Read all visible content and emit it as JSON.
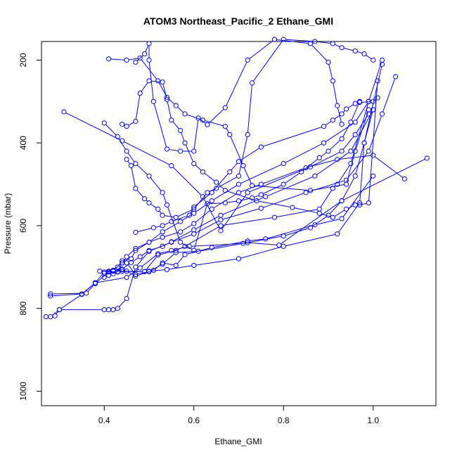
{
  "chart_data": {
    "type": "line",
    "title": "ATOM3 Northeast_Pacific_2 Ethane_GMI",
    "xlabel": "Ethane_GMI",
    "ylabel": "Pressure (mbar)",
    "xlim": [
      0.26,
      1.14
    ],
    "ylim": [
      1035,
      155
    ],
    "y_reversed": true,
    "grid": false,
    "marker": "open-circle",
    "color": "#0000ff",
    "x_ticks": [
      0.4,
      0.6,
      0.8,
      1.0
    ],
    "x_tick_labels": [
      "0.4",
      "0.6",
      "0.8",
      "1.0"
    ],
    "y_ticks": [
      200,
      400,
      600,
      800,
      1000
    ],
    "y_tick_labels": [
      "200",
      "400",
      "600",
      "800",
      "1000"
    ],
    "series": [
      {
        "x": [
          0.27,
          0.28,
          0.3,
          0.4,
          0.41,
          0.42,
          0.43,
          0.45,
          0.47,
          0.5,
          0.55,
          0.6,
          0.66,
          0.75,
          0.85,
          0.94,
          0.99,
          1.02,
          1.05
        ],
        "y": [
          820,
          820,
          803,
          803,
          803,
          803,
          800,
          776,
          700,
          662,
          640,
          620,
          586,
          558,
          520,
          490,
          420,
          330,
          240
        ]
      },
      {
        "x": [
          0.29,
          0.3,
          0.35,
          0.38,
          0.45,
          0.48,
          0.52,
          0.55,
          0.59,
          0.71,
          0.8,
          0.86,
          0.9,
          0.93,
          0.96,
          0.98,
          1.0
        ],
        "y": [
          818,
          803,
          766,
          738,
          725,
          702,
          668,
          660,
          650,
          643,
          625,
          605,
          575,
          540,
          480,
          400,
          320
        ]
      },
      {
        "x": [
          0.28,
          0.35,
          0.38,
          0.4,
          0.43,
          0.49,
          0.52,
          0.56,
          0.58,
          0.66,
          0.78,
          0.88,
          0.91,
          0.92,
          0.95,
          0.99,
          1.02
        ],
        "y": [
          770,
          765,
          738,
          712,
          711,
          711,
          671,
          660,
          650,
          600,
          580,
          560,
          510,
          500,
          450,
          300,
          200
        ]
      },
      {
        "x": [
          0.28,
          0.36,
          0.38,
          0.41,
          0.42,
          0.44,
          0.49,
          0.5,
          0.54,
          0.6,
          0.7,
          0.8,
          0.92,
          0.97,
          0.98,
          1.02
        ],
        "y": [
          765,
          763,
          740,
          712,
          708,
          710,
          711,
          710,
          706,
          696,
          680,
          650,
          620,
          545,
          400,
          210
        ]
      },
      {
        "x": [
          0.39,
          0.42,
          0.43,
          0.44,
          0.45,
          0.47,
          0.5,
          0.53,
          0.56,
          0.61,
          0.72,
          0.79,
          0.93,
          1.12
        ],
        "y": [
          710,
          709,
          712,
          690,
          690,
          718,
          711,
          693,
          665,
          662,
          641,
          647,
          540,
          437
        ]
      },
      {
        "x": [
          0.42,
          0.44,
          0.45,
          0.47,
          0.51,
          0.53,
          0.56,
          0.58,
          0.64,
          0.72,
          0.76,
          0.87,
          0.93,
          1.0
        ],
        "y": [
          710,
          706,
          710,
          722,
          708,
          690,
          696,
          670,
          653,
          637,
          632,
          598,
          583,
          480
        ]
      },
      {
        "x": [
          0.4,
          0.42,
          0.44,
          0.45,
          0.47,
          0.5,
          0.53,
          0.57,
          0.6,
          0.64,
          0.7,
          0.75,
          0.85,
          0.92,
          1.0,
          1.07
        ],
        "y": [
          715,
          708,
          690,
          675,
          655,
          640,
          628,
          615,
          595,
          560,
          520,
          500,
          460,
          440,
          430,
          487
        ]
      },
      {
        "x": [
          0.41,
          0.43,
          0.44,
          0.46,
          0.47,
          0.5,
          0.53,
          0.57,
          0.6,
          0.64,
          0.7,
          0.8,
          0.89,
          0.96,
          0.99
        ],
        "y": [
          710,
          700,
          685,
          680,
          660,
          640,
          615,
          590,
          570,
          540,
          500,
          450,
          400,
          350,
          300
        ]
      },
      {
        "x": [
          0.4,
          0.41,
          0.42,
          0.44,
          0.46,
          0.48,
          0.5,
          0.53,
          0.55,
          0.6,
          0.66,
          0.76,
          0.87,
          0.95,
          1.0
        ],
        "y": [
          725,
          720,
          716,
          705,
          689,
          675,
          660,
          650,
          639,
          610,
          575,
          530,
          480,
          420,
          320
        ]
      },
      {
        "x": [
          0.31,
          0.44,
          0.55,
          0.62,
          0.66,
          0.72,
          0.86,
          0.93,
          0.96,
          0.99
        ],
        "y": [
          325,
          395,
          455,
          530,
          612,
          520,
          458,
          420,
          380,
          330
        ]
      },
      {
        "x": [
          0.41,
          0.45,
          0.48,
          0.52,
          0.54,
          0.56,
          0.58,
          0.62,
          0.67,
          0.68,
          0.71,
          0.73,
          0.86,
          0.94,
          0.96,
          0.99
        ],
        "y": [
          197,
          200,
          195,
          250,
          290,
          310,
          330,
          345,
          360,
          380,
          455,
          503,
          515,
          500,
          420,
          320
        ]
      },
      {
        "x": [
          0.4,
          0.43,
          0.45,
          0.47,
          0.5,
          0.53,
          0.54,
          0.57,
          0.6,
          0.63,
          0.67,
          0.7,
          0.73,
          0.75,
          0.8,
          0.84,
          0.88,
          0.9,
          0.93,
          0.95,
          0.97
        ],
        "y": [
          352,
          385,
          420,
          450,
          480,
          520,
          550,
          640,
          660,
          547,
          545,
          540,
          533,
          525,
          500,
          470,
          436,
          420,
          390,
          350,
          300
        ]
      },
      {
        "x": [
          0.45,
          0.46,
          0.47,
          0.49,
          0.5,
          0.52,
          0.53,
          0.56,
          0.6,
          0.63,
          0.65,
          0.7,
          0.72,
          0.73,
          0.8,
          0.87,
          0.91,
          0.93,
          0.96,
          0.98,
          1.0
        ],
        "y": [
          440,
          455,
          510,
          535,
          545,
          560,
          575,
          580,
          560,
          520,
          510,
          480,
          380,
          255,
          150,
          155,
          160,
          170,
          178,
          185,
          200
        ]
      },
      {
        "x": [
          0.47,
          0.49,
          0.5,
          0.5,
          0.51,
          0.54,
          0.57,
          0.6,
          0.61,
          0.63,
          0.67,
          0.72,
          0.78,
          0.86,
          0.9,
          0.91,
          0.92,
          0.93
        ],
        "y": [
          205,
          185,
          160,
          200,
          300,
          415,
          420,
          420,
          340,
          356,
          315,
          200,
          150,
          160,
          205,
          250,
          310,
          355
        ]
      },
      {
        "x": [
          0.44,
          0.45,
          0.47,
          0.48,
          0.5,
          0.53,
          0.54,
          0.55,
          0.57,
          0.58,
          0.6,
          0.62,
          0.65,
          0.67,
          0.74,
          0.82,
          0.88,
          0.91,
          0.94,
          0.96,
          0.97,
          0.99,
          1.01
        ],
        "y": [
          355,
          360,
          348,
          280,
          250,
          253,
          295,
          345,
          370,
          400,
          450,
          470,
          495,
          515,
          540,
          556,
          570,
          580,
          560,
          550,
          550,
          545,
          250
        ]
      },
      {
        "x": [
          0.47,
          0.51,
          0.53,
          0.55,
          0.59,
          0.6,
          0.64,
          0.68,
          0.7,
          0.75,
          0.89,
          0.91,
          0.93,
          0.94,
          0.96,
          0.97,
          1.0,
          1.01
        ],
        "y": [
          616,
          605,
          600,
          590,
          575,
          555,
          520,
          470,
          445,
          410,
          360,
          345,
          330,
          318,
          305,
          302,
          300,
          291
        ]
      }
    ]
  }
}
